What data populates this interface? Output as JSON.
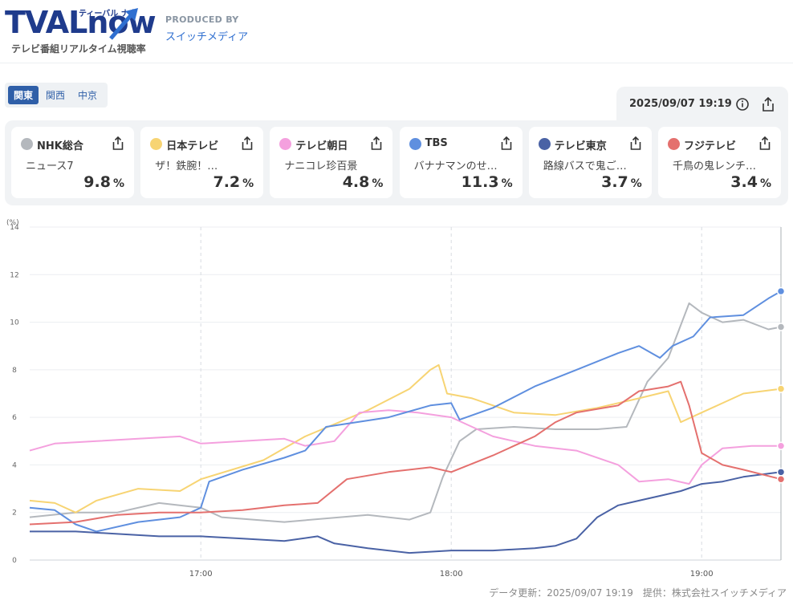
{
  "header": {
    "logo_text": "TVALnow",
    "logo_small": "ティーバル ナウ",
    "logo_subtitle": "テレビ番組リアルタイム視聴率",
    "produced_by": "PRODUCED BY",
    "producer": "スイッチメディア"
  },
  "regions": [
    {
      "label": "関東",
      "active": true
    },
    {
      "label": "関西",
      "active": false
    },
    {
      "label": "中京",
      "active": false
    }
  ],
  "datetime": "2025/09/07 19:19",
  "colors": {
    "NHK": "#b4b8bd",
    "NTV": "#f7d473",
    "TVA": "#f4a0de",
    "TBS": "#5f8fdf",
    "TX": "#4a62a5",
    "CX": "#e4706e"
  },
  "channels": [
    {
      "key": "NHK",
      "name": "NHK総合",
      "program": "ニュース7",
      "rating": "9.8",
      "unit": "%"
    },
    {
      "key": "NTV",
      "name": "日本テレビ",
      "program": "ザ！鉄腕！…",
      "rating": "7.2",
      "unit": "%"
    },
    {
      "key": "TVA",
      "name": "テレビ朝日",
      "program": "ナニコレ珍百景",
      "rating": "4.8",
      "unit": "%"
    },
    {
      "key": "TBS",
      "name": "TBS",
      "program": "バナナマンのせ…",
      "rating": "11.3",
      "unit": "%"
    },
    {
      "key": "TX",
      "name": "テレビ東京",
      "program": "路線バスで鬼ご…",
      "rating": "3.7",
      "unit": "%"
    },
    {
      "key": "CX",
      "name": "フジテレビ",
      "program": "千鳥の鬼レンチ…",
      "rating": "3.4",
      "unit": "%"
    }
  ],
  "chart_data": {
    "type": "line",
    "unit_label": "(%)",
    "ylim": [
      0,
      14
    ],
    "yticks": [
      "0",
      "2",
      "4",
      "6",
      "8",
      "10",
      "12",
      "14"
    ],
    "xlim": [
      "16:19",
      "19:19"
    ],
    "xticks": [
      {
        "t": "17:00",
        "label": "17:00"
      },
      {
        "t": "18:00",
        "label": "18:00"
      },
      {
        "t": "19:00",
        "label": "19:00"
      }
    ],
    "grid": true,
    "series": [
      {
        "key": "NHK",
        "name": "NHK総合",
        "points": [
          [
            "16:19",
            1.8
          ],
          [
            "16:30",
            2.0
          ],
          [
            "16:40",
            2.0
          ],
          [
            "16:50",
            2.4
          ],
          [
            "17:00",
            2.2
          ],
          [
            "17:05",
            1.8
          ],
          [
            "17:20",
            1.6
          ],
          [
            "17:40",
            1.9
          ],
          [
            "17:50",
            1.7
          ],
          [
            "17:55",
            2.0
          ],
          [
            "17:58",
            3.5
          ],
          [
            "18:02",
            5.0
          ],
          [
            "18:06",
            5.5
          ],
          [
            "18:15",
            5.6
          ],
          [
            "18:25",
            5.5
          ],
          [
            "18:35",
            5.5
          ],
          [
            "18:42",
            5.6
          ],
          [
            "18:47",
            7.5
          ],
          [
            "18:52",
            8.5
          ],
          [
            "18:57",
            10.8
          ],
          [
            "19:00",
            10.4
          ],
          [
            "19:05",
            10.0
          ],
          [
            "19:10",
            10.1
          ],
          [
            "19:16",
            9.7
          ],
          [
            "19:19",
            9.8
          ]
        ]
      },
      {
        "key": "NTV",
        "name": "日本テレビ",
        "points": [
          [
            "16:19",
            2.5
          ],
          [
            "16:25",
            2.4
          ],
          [
            "16:30",
            2.0
          ],
          [
            "16:35",
            2.5
          ],
          [
            "16:45",
            3.0
          ],
          [
            "16:55",
            2.9
          ],
          [
            "17:00",
            3.4
          ],
          [
            "17:15",
            4.2
          ],
          [
            "17:25",
            5.2
          ],
          [
            "17:40",
            6.3
          ],
          [
            "17:50",
            7.2
          ],
          [
            "17:55",
            8.0
          ],
          [
            "17:57",
            8.2
          ],
          [
            "17:59",
            7.0
          ],
          [
            "18:05",
            6.8
          ],
          [
            "18:15",
            6.2
          ],
          [
            "18:25",
            6.1
          ],
          [
            "18:35",
            6.4
          ],
          [
            "18:45",
            6.8
          ],
          [
            "18:52",
            7.1
          ],
          [
            "18:55",
            5.8
          ],
          [
            "19:00",
            6.2
          ],
          [
            "19:05",
            6.6
          ],
          [
            "19:10",
            7.0
          ],
          [
            "19:19",
            7.2
          ]
        ]
      },
      {
        "key": "TVA",
        "name": "テレビ朝日",
        "points": [
          [
            "16:19",
            4.6
          ],
          [
            "16:25",
            4.9
          ],
          [
            "16:35",
            5.0
          ],
          [
            "16:45",
            5.1
          ],
          [
            "16:55",
            5.2
          ],
          [
            "17:00",
            4.9
          ],
          [
            "17:10",
            5.0
          ],
          [
            "17:20",
            5.1
          ],
          [
            "17:25",
            4.8
          ],
          [
            "17:32",
            5.0
          ],
          [
            "17:38",
            6.2
          ],
          [
            "17:45",
            6.3
          ],
          [
            "17:52",
            6.2
          ],
          [
            "18:00",
            6.0
          ],
          [
            "18:10",
            5.2
          ],
          [
            "18:20",
            4.8
          ],
          [
            "18:30",
            4.6
          ],
          [
            "18:40",
            4.0
          ],
          [
            "18:45",
            3.3
          ],
          [
            "18:52",
            3.4
          ],
          [
            "18:57",
            3.2
          ],
          [
            "19:00",
            4.0
          ],
          [
            "19:05",
            4.7
          ],
          [
            "19:12",
            4.8
          ],
          [
            "19:19",
            4.8
          ]
        ]
      },
      {
        "key": "TBS",
        "name": "TBS",
        "points": [
          [
            "16:19",
            2.2
          ],
          [
            "16:25",
            2.1
          ],
          [
            "16:30",
            1.5
          ],
          [
            "16:35",
            1.2
          ],
          [
            "16:45",
            1.6
          ],
          [
            "16:55",
            1.8
          ],
          [
            "17:00",
            2.2
          ],
          [
            "17:02",
            3.3
          ],
          [
            "17:10",
            3.8
          ],
          [
            "17:20",
            4.3
          ],
          [
            "17:25",
            4.6
          ],
          [
            "17:30",
            5.6
          ],
          [
            "17:45",
            6.0
          ],
          [
            "17:55",
            6.5
          ],
          [
            "18:00",
            6.6
          ],
          [
            "18:02",
            5.9
          ],
          [
            "18:10",
            6.4
          ],
          [
            "18:20",
            7.3
          ],
          [
            "18:30",
            8.0
          ],
          [
            "18:40",
            8.7
          ],
          [
            "18:45",
            9.0
          ],
          [
            "18:50",
            8.5
          ],
          [
            "18:53",
            9.0
          ],
          [
            "18:58",
            9.4
          ],
          [
            "19:02",
            10.2
          ],
          [
            "19:10",
            10.3
          ],
          [
            "19:16",
            11.0
          ],
          [
            "19:19",
            11.3
          ]
        ]
      },
      {
        "key": "TX",
        "name": "テレビ東京",
        "points": [
          [
            "16:19",
            1.2
          ],
          [
            "16:30",
            1.2
          ],
          [
            "16:40",
            1.1
          ],
          [
            "16:50",
            1.0
          ],
          [
            "17:00",
            1.0
          ],
          [
            "17:10",
            0.9
          ],
          [
            "17:20",
            0.8
          ],
          [
            "17:28",
            1.0
          ],
          [
            "17:32",
            0.7
          ],
          [
            "17:40",
            0.5
          ],
          [
            "17:50",
            0.3
          ],
          [
            "18:00",
            0.4
          ],
          [
            "18:10",
            0.4
          ],
          [
            "18:20",
            0.5
          ],
          [
            "18:25",
            0.6
          ],
          [
            "18:30",
            0.9
          ],
          [
            "18:35",
            1.8
          ],
          [
            "18:40",
            2.3
          ],
          [
            "18:45",
            2.5
          ],
          [
            "18:50",
            2.7
          ],
          [
            "18:55",
            2.9
          ],
          [
            "19:00",
            3.2
          ],
          [
            "19:05",
            3.3
          ],
          [
            "19:10",
            3.5
          ],
          [
            "19:19",
            3.7
          ]
        ]
      },
      {
        "key": "CX",
        "name": "フジテレビ",
        "points": [
          [
            "16:19",
            1.5
          ],
          [
            "16:30",
            1.6
          ],
          [
            "16:40",
            1.9
          ],
          [
            "16:50",
            2.0
          ],
          [
            "17:00",
            2.0
          ],
          [
            "17:10",
            2.1
          ],
          [
            "17:20",
            2.3
          ],
          [
            "17:28",
            2.4
          ],
          [
            "17:35",
            3.4
          ],
          [
            "17:45",
            3.7
          ],
          [
            "17:55",
            3.9
          ],
          [
            "18:00",
            3.7
          ],
          [
            "18:10",
            4.4
          ],
          [
            "18:20",
            5.2
          ],
          [
            "18:25",
            5.8
          ],
          [
            "18:30",
            6.2
          ],
          [
            "18:40",
            6.5
          ],
          [
            "18:45",
            7.1
          ],
          [
            "18:52",
            7.3
          ],
          [
            "18:55",
            7.5
          ],
          [
            "18:57",
            6.5
          ],
          [
            "19:00",
            4.5
          ],
          [
            "19:05",
            4.0
          ],
          [
            "19:10",
            3.8
          ],
          [
            "19:19",
            3.4
          ]
        ]
      }
    ]
  },
  "footer": "データ更新：2025/09/07 19:19　提供：株式会社スイッチメディア"
}
